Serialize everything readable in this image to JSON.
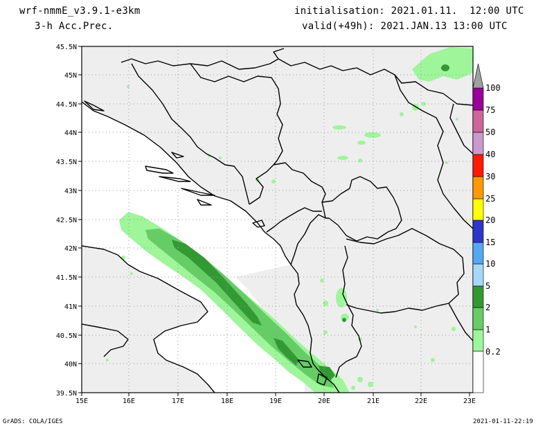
{
  "header": {
    "model": "wrf-nmmE_v3.9.1-e3km",
    "field": "3-h Acc.Prec.",
    "init": "initialisation: 2021.01.11.  12:00 UTC",
    "valid": "valid(+49h): 2021.JAN.13 13:00 UTC"
  },
  "footer": {
    "grads": "GrADS: COLA/IGES",
    "date": "2021-01-11-22:19"
  },
  "map": {
    "lat_labels": [
      "45.5N",
      "45N",
      "44.5N",
      "44N",
      "43.5N",
      "43N",
      "42.5N",
      "42N",
      "41.5N",
      "41N",
      "40.5N",
      "40N",
      "39.5N"
    ],
    "lon_labels": [
      "15E",
      "16E",
      "17E",
      "18E",
      "19E",
      "20E",
      "21E",
      "22E",
      "23E"
    ],
    "colors": {
      "land": "#eeeeee",
      "sea": "#ffffff",
      "border": "#000000",
      "grid": "#9a9a9a"
    }
  },
  "colorbar": {
    "labels": [
      "0.2",
      "1",
      "2",
      "5",
      "10",
      "15",
      "20",
      "25",
      "30",
      "40",
      "50",
      "75",
      "100"
    ],
    "colors": [
      "#9ef59a",
      "#66cc66",
      "#339933",
      "#a6d8f7",
      "#55a8f0",
      "#2f35c8",
      "#ffff00",
      "#ff9900",
      "#ff1a00",
      "#cc99cc",
      "#cc6699",
      "#990099",
      "#a0a0a0"
    ]
  }
}
